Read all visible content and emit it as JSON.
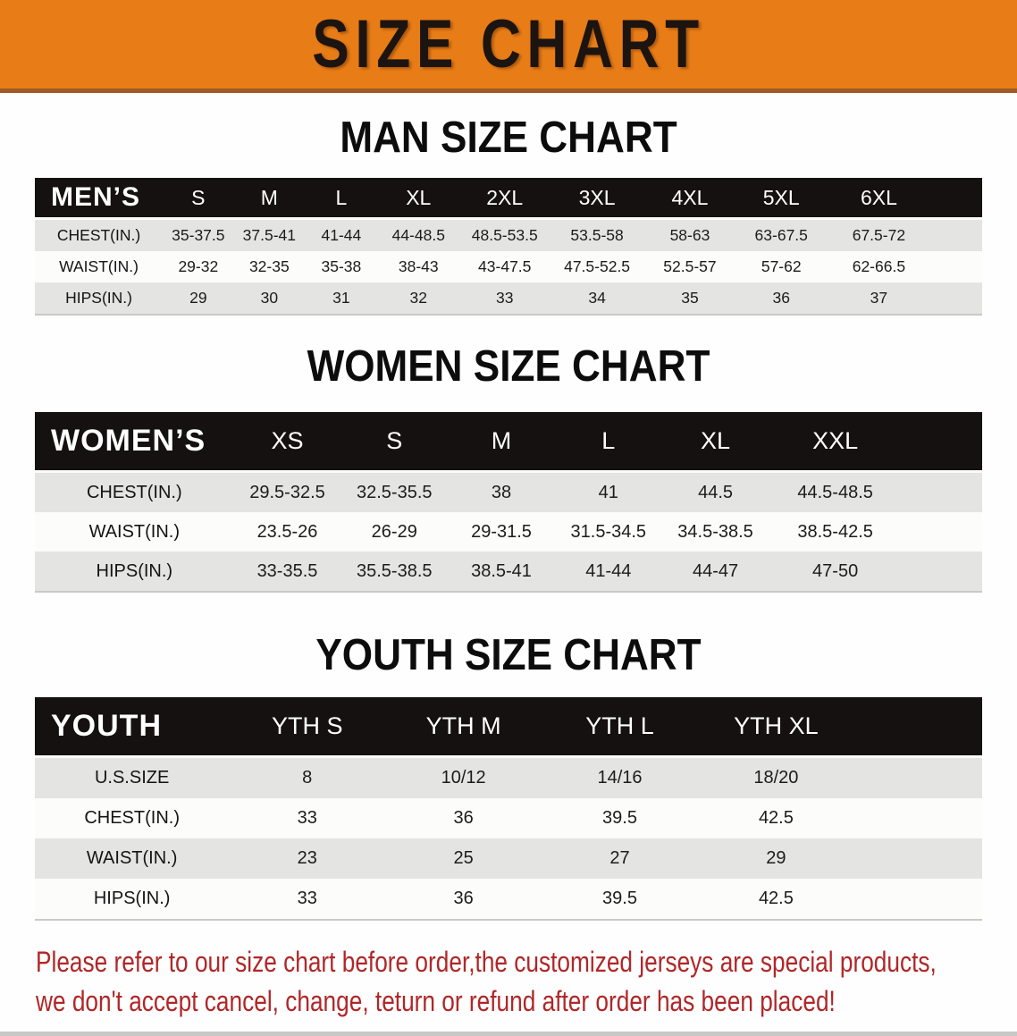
{
  "banner": {
    "title": "SIZE CHART"
  },
  "headings": {
    "man": "MAN SIZE CHART",
    "women": "WOMEN SIZE CHART",
    "youth": "YOUTH SIZE CHART"
  },
  "tables": {
    "men": {
      "label": "MEN’S",
      "columns": [
        "S",
        "M",
        "L",
        "XL",
        "2XL",
        "3XL",
        "4XL",
        "5XL",
        "6XL"
      ],
      "rows": [
        {
          "label": "CHEST(IN.)",
          "cells": [
            "35-37.5",
            "37.5-41",
            "41-44",
            "44-48.5",
            "48.5-53.5",
            "53.5-58",
            "58-63",
            "63-67.5",
            "67.5-72"
          ]
        },
        {
          "label": "WAIST(IN.)",
          "cells": [
            "29-32",
            "32-35",
            "35-38",
            "38-43",
            "43-47.5",
            "47.5-52.5",
            "52.5-57",
            "57-62",
            "62-66.5"
          ]
        },
        {
          "label": "HIPS(IN.)",
          "cells": [
            "29",
            "30",
            "31",
            "32",
            "33",
            "34",
            "35",
            "36",
            "37"
          ]
        }
      ]
    },
    "women": {
      "label": "WOMEN’S",
      "columns": [
        "XS",
        "S",
        "M",
        "L",
        "XL",
        "XXL"
      ],
      "rows": [
        {
          "label": "CHEST(IN.)",
          "cells": [
            "29.5-32.5",
            "32.5-35.5",
            "38",
            "41",
            "44.5",
            "44.5-48.5"
          ]
        },
        {
          "label": "WAIST(IN.)",
          "cells": [
            "23.5-26",
            "26-29",
            "29-31.5",
            "31.5-34.5",
            "34.5-38.5",
            "38.5-42.5"
          ]
        },
        {
          "label": "HIPS(IN.)",
          "cells": [
            "33-35.5",
            "35.5-38.5",
            "38.5-41",
            "41-44",
            "44-47",
            "47-50"
          ]
        }
      ]
    },
    "youth": {
      "label": "YOUTH",
      "columns": [
        "YTH S",
        "YTH M",
        "YTH L",
        "YTH XL"
      ],
      "rows": [
        {
          "label": "U.S.SIZE",
          "cells": [
            "8",
            "10/12",
            "14/16",
            "18/20"
          ]
        },
        {
          "label": "CHEST(IN.)",
          "cells": [
            "33",
            "36",
            "39.5",
            "42.5"
          ]
        },
        {
          "label": "WAIST(IN.)",
          "cells": [
            "23",
            "25",
            "27",
            "29"
          ]
        },
        {
          "label": "HIPS(IN.)",
          "cells": [
            "33",
            "36",
            "39.5",
            "42.5"
          ]
        }
      ]
    }
  },
  "disclaimer": {
    "line1": "Please refer to our size chart before order,the customized jerseys are special products,",
    "line2": "we don't accept cancel, change, teturn or refund after order has been placed!"
  },
  "colors": {
    "banner_bg": "#e87c16",
    "banner_edge": "#a05a26",
    "table_header_bg": "#141110",
    "row_gray": "#e4e4e2",
    "row_white": "#fcfcfb",
    "disclaimer_red": "#b02728"
  }
}
